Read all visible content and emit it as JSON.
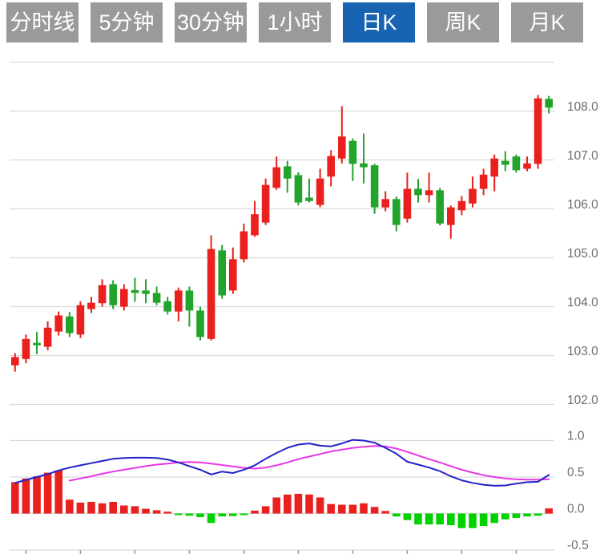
{
  "toolbar": {
    "tabs": [
      {
        "label": "分时线",
        "active": false
      },
      {
        "label": "5分钟",
        "active": false
      },
      {
        "label": "30分钟",
        "active": false
      },
      {
        "label": "1小时",
        "active": false
      },
      {
        "label": "日K",
        "active": true
      },
      {
        "label": "周K",
        "active": false
      },
      {
        "label": "月K",
        "active": false
      }
    ],
    "active_tab": "日K"
  },
  "colors": {
    "tab_active_bg": "#1864b2",
    "tab_inactive_bg": "#9a9a9a",
    "tab_text": "#ffffff",
    "grid": "#d9d9d9",
    "axis_text": "#6e6e6e",
    "tick": "#9b9b9b",
    "up_candle": "#e9201d",
    "down_candle": "#22a32c",
    "macd_pos_bar": "#e9201d",
    "macd_neg_bar": "#00d200",
    "dif_line": "#2121c8",
    "dea_line": "#e836e8"
  },
  "chart_data": {
    "type": "candlestick",
    "title": "",
    "note": "daily K-line with MACD sub-chart, red=up green=down",
    "price_pane": {
      "y_ticks": [
        "108.0",
        "107.0",
        "106.0",
        "105.0",
        "104.0",
        "103.0",
        "102.0"
      ],
      "y_grid_values": [
        109,
        108,
        107,
        106,
        105,
        104,
        103,
        102
      ],
      "ylim": [
        101.6,
        109.0
      ],
      "candles": [
        {
          "o": 102.8,
          "c": 102.97,
          "h": 103.05,
          "l": 102.67
        },
        {
          "o": 102.93,
          "c": 103.34,
          "h": 103.43,
          "l": 102.84
        },
        {
          "o": 103.26,
          "c": 103.21,
          "h": 103.48,
          "l": 103.03
        },
        {
          "o": 103.18,
          "c": 103.57,
          "h": 103.7,
          "l": 103.11
        },
        {
          "o": 103.49,
          "c": 103.82,
          "h": 103.9,
          "l": 103.41
        },
        {
          "o": 103.8,
          "c": 103.46,
          "h": 103.89,
          "l": 103.38
        },
        {
          "o": 103.43,
          "c": 104.03,
          "h": 104.11,
          "l": 103.36
        },
        {
          "o": 103.95,
          "c": 104.08,
          "h": 104.2,
          "l": 103.87
        },
        {
          "o": 104.07,
          "c": 104.44,
          "h": 104.56,
          "l": 104.0
        },
        {
          "o": 104.46,
          "c": 104.03,
          "h": 104.54,
          "l": 103.95
        },
        {
          "o": 104.0,
          "c": 104.36,
          "h": 104.46,
          "l": 103.92
        },
        {
          "o": 104.34,
          "c": 104.28,
          "h": 104.59,
          "l": 104.1
        },
        {
          "o": 104.33,
          "c": 104.26,
          "h": 104.56,
          "l": 104.07
        },
        {
          "o": 104.28,
          "c": 104.08,
          "h": 104.41,
          "l": 104.03
        },
        {
          "o": 104.11,
          "c": 103.9,
          "h": 104.2,
          "l": 103.84
        },
        {
          "o": 103.9,
          "c": 104.33,
          "h": 104.39,
          "l": 103.7
        },
        {
          "o": 104.33,
          "c": 103.92,
          "h": 104.41,
          "l": 103.59
        },
        {
          "o": 103.92,
          "c": 103.38,
          "h": 104.0,
          "l": 103.31
        },
        {
          "o": 103.34,
          "c": 105.18,
          "h": 105.46,
          "l": 103.31
        },
        {
          "o": 105.15,
          "c": 104.23,
          "h": 105.26,
          "l": 104.16
        },
        {
          "o": 104.33,
          "c": 104.97,
          "h": 105.21,
          "l": 104.26
        },
        {
          "o": 104.97,
          "c": 105.54,
          "h": 105.7,
          "l": 104.9
        },
        {
          "o": 105.46,
          "c": 105.89,
          "h": 106.16,
          "l": 105.43
        },
        {
          "o": 105.72,
          "c": 106.49,
          "h": 106.62,
          "l": 105.67
        },
        {
          "o": 106.43,
          "c": 106.85,
          "h": 107.07,
          "l": 106.39
        },
        {
          "o": 106.87,
          "c": 106.62,
          "h": 106.98,
          "l": 106.33
        },
        {
          "o": 106.69,
          "c": 106.13,
          "h": 106.75,
          "l": 106.07
        },
        {
          "o": 106.23,
          "c": 106.16,
          "h": 106.62,
          "l": 106.13
        },
        {
          "o": 106.08,
          "c": 106.62,
          "h": 106.82,
          "l": 106.03
        },
        {
          "o": 106.66,
          "c": 107.08,
          "h": 107.2,
          "l": 106.46
        },
        {
          "o": 107.03,
          "c": 107.48,
          "h": 108.1,
          "l": 106.93
        },
        {
          "o": 107.39,
          "c": 106.92,
          "h": 107.44,
          "l": 106.57
        },
        {
          "o": 106.93,
          "c": 106.85,
          "h": 107.54,
          "l": 106.52
        },
        {
          "o": 106.89,
          "c": 106.03,
          "h": 106.92,
          "l": 105.9
        },
        {
          "o": 106.03,
          "c": 106.2,
          "h": 106.36,
          "l": 105.95
        },
        {
          "o": 106.2,
          "c": 105.67,
          "h": 106.25,
          "l": 105.54
        },
        {
          "o": 105.8,
          "c": 106.41,
          "h": 106.74,
          "l": 105.72
        },
        {
          "o": 106.41,
          "c": 106.28,
          "h": 106.61,
          "l": 106.13
        },
        {
          "o": 106.28,
          "c": 106.38,
          "h": 106.74,
          "l": 106.13
        },
        {
          "o": 106.38,
          "c": 105.7,
          "h": 106.43,
          "l": 105.66
        },
        {
          "o": 105.67,
          "c": 106.03,
          "h": 106.07,
          "l": 105.39
        },
        {
          "o": 105.97,
          "c": 106.16,
          "h": 106.26,
          "l": 105.87
        },
        {
          "o": 106.11,
          "c": 106.41,
          "h": 106.66,
          "l": 106.03
        },
        {
          "o": 106.41,
          "c": 106.7,
          "h": 106.82,
          "l": 106.28
        },
        {
          "o": 106.66,
          "c": 107.03,
          "h": 107.11,
          "l": 106.36
        },
        {
          "o": 106.98,
          "c": 106.9,
          "h": 107.18,
          "l": 106.77
        },
        {
          "o": 107.07,
          "c": 106.79,
          "h": 107.11,
          "l": 106.74
        },
        {
          "o": 106.82,
          "c": 106.93,
          "h": 107.07,
          "l": 106.77
        },
        {
          "o": 106.92,
          "c": 108.26,
          "h": 108.33,
          "l": 106.82
        },
        {
          "o": 108.25,
          "c": 108.07,
          "h": 108.31,
          "l": 107.95
        }
      ]
    },
    "macd_pane": {
      "y_ticks": [
        "1.0",
        "0.5",
        "0.0",
        "-0.5"
      ],
      "y_grid_values": [
        1.0,
        0.5,
        0.0,
        -0.5
      ],
      "ylim": [
        -0.55,
        1.0
      ],
      "histogram": [
        0.43,
        0.48,
        0.51,
        0.56,
        0.59,
        0.19,
        0.15,
        0.16,
        0.14,
        0.16,
        0.11,
        0.1,
        0.065,
        0.045,
        0.025,
        -0.02,
        -0.03,
        -0.05,
        -0.13,
        -0.04,
        -0.035,
        -0.02,
        0.04,
        0.1,
        0.22,
        0.26,
        0.27,
        0.26,
        0.22,
        0.13,
        0.12,
        0.12,
        0.14,
        0.09,
        0.035,
        -0.04,
        -0.09,
        -0.15,
        -0.15,
        -0.15,
        -0.16,
        -0.2,
        -0.2,
        -0.17,
        -0.13,
        -0.08,
        -0.06,
        -0.04,
        -0.03,
        0.07
      ],
      "dif": [
        0.42,
        0.46,
        0.5,
        0.54,
        0.59,
        0.63,
        0.66,
        0.69,
        0.72,
        0.75,
        0.76,
        0.765,
        0.765,
        0.76,
        0.74,
        0.7,
        0.65,
        0.6,
        0.535,
        0.575,
        0.555,
        0.6,
        0.66,
        0.75,
        0.83,
        0.9,
        0.945,
        0.96,
        0.93,
        0.92,
        0.96,
        1.01,
        1.0,
        0.97,
        0.9,
        0.82,
        0.71,
        0.67,
        0.63,
        0.58,
        0.51,
        0.455,
        0.42,
        0.395,
        0.38,
        0.385,
        0.41,
        0.43,
        0.435,
        0.53
      ],
      "dea": [
        null,
        null,
        null,
        null,
        null,
        0.45,
        0.48,
        0.51,
        0.545,
        0.575,
        0.6,
        0.625,
        0.65,
        0.67,
        0.685,
        0.7,
        0.705,
        0.7,
        0.685,
        0.665,
        0.645,
        0.625,
        0.615,
        0.63,
        0.66,
        0.7,
        0.745,
        0.78,
        0.815,
        0.85,
        0.875,
        0.9,
        0.915,
        0.925,
        0.92,
        0.89,
        0.845,
        0.795,
        0.745,
        0.7,
        0.65,
        0.6,
        0.56,
        0.525,
        0.5,
        0.48,
        0.47,
        0.465,
        0.465,
        0.47
      ]
    }
  }
}
